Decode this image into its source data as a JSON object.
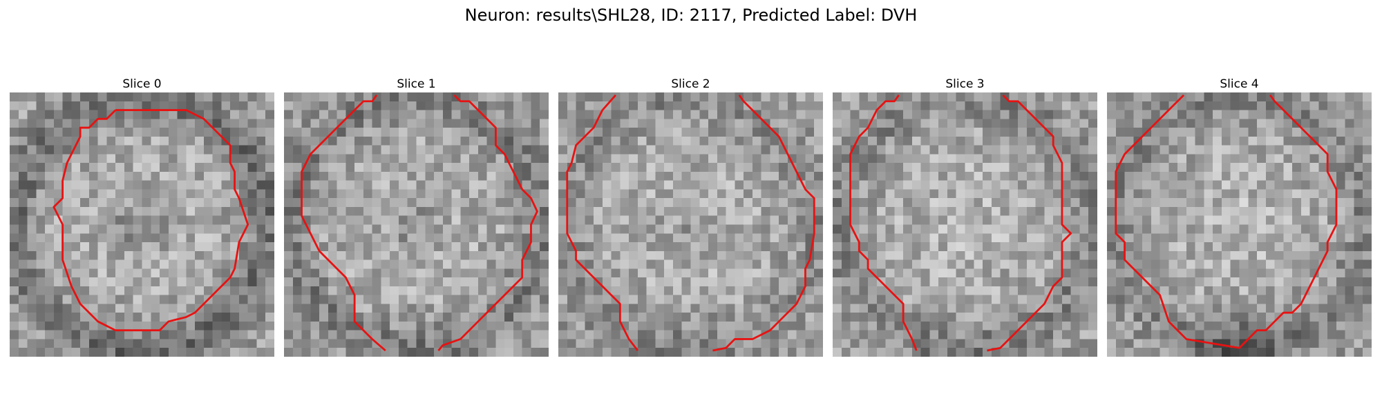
{
  "figure": {
    "title": "Neuron: results\\SHL28, ID: 2117, Predicted Label: DVH"
  },
  "slices": [
    {
      "title": "Slice 0",
      "seed": 11,
      "center_darkness": 0.55,
      "ring": 0.35,
      "bottom_dark": 0.1,
      "outline_color": "#e81212"
    },
    {
      "title": "Slice 1",
      "seed": 23,
      "center_darkness": 0.45,
      "ring": 0.25,
      "bottom_dark": 0.15,
      "outline_color": "#e81212"
    },
    {
      "title": "Slice 2",
      "seed": 37,
      "center_darkness": 0.35,
      "ring": 0.15,
      "bottom_dark": 0.25,
      "outline_color": "#e81212"
    },
    {
      "title": "Slice 3",
      "seed": 41,
      "center_darkness": 0.1,
      "ring": 0.2,
      "bottom_dark": 0.2,
      "outline_color": "#e81212"
    },
    {
      "title": "Slice 4",
      "seed": 53,
      "center_darkness": 0.05,
      "ring": 0.2,
      "bottom_dark": 0.8,
      "outline_color": "#e81212"
    }
  ]
}
